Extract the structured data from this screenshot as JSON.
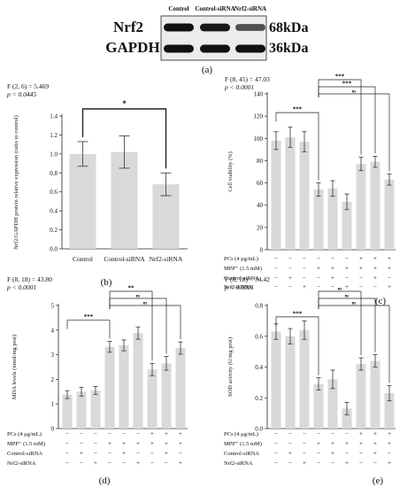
{
  "blot": {
    "lanes": [
      "Control",
      "Control-siRNA",
      "Nrf2-siRNA"
    ],
    "rows": [
      {
        "protein": "Nrf2",
        "mw": "68kDa",
        "intensity": [
          1.0,
          0.95,
          0.55
        ]
      },
      {
        "protein": "GAPDH",
        "mw": "36kDa",
        "intensity": [
          1.0,
          1.0,
          1.0
        ]
      }
    ],
    "panel_label": "(a)"
  },
  "chart_data": [
    {
      "panel": "(b)",
      "type": "bar",
      "stat": "F (2, 6) = 5.469",
      "pval": "p = 0.0445",
      "ylabel": "Nrf2/GAPDH protein relative expression (ratio to control)",
      "ylim": [
        0,
        1.4
      ],
      "yticks": [
        "0.0",
        "0.2",
        "0.4",
        "0.6",
        "0.8",
        "1.0",
        "1.2",
        "1.4"
      ],
      "categories": [
        "Control",
        "Control-siRNA",
        "Nrf2-siRNA"
      ],
      "values": [
        1.0,
        1.02,
        0.68
      ],
      "errors": [
        0.13,
        0.17,
        0.12
      ],
      "sig": [
        {
          "from": 0,
          "to": 2,
          "label": "*"
        }
      ]
    },
    {
      "panel": "(c)",
      "type": "bar",
      "stat": "F (8, 45) = 47.03",
      "pval": "p < 0.0001",
      "ylabel": "Cell viability (%)",
      "ylim": [
        0,
        140
      ],
      "yticks": [
        "0",
        "20",
        "40",
        "60",
        "80",
        "100",
        "120",
        "140"
      ],
      "values": [
        98,
        101,
        97,
        54,
        55,
        43,
        77,
        79,
        63
      ],
      "errors": [
        8,
        9,
        9,
        6,
        7,
        7,
        6,
        5,
        5
      ],
      "sig": [
        {
          "from": 0,
          "to": 3,
          "label": "***"
        },
        {
          "from": 3,
          "to": 6,
          "label": "***"
        },
        {
          "from": 3,
          "to": 7,
          "label": "***"
        },
        {
          "from": 3,
          "to": 8,
          "label": "ns"
        }
      ],
      "rows": [
        {
          "label": "PCs (4 μg/mL)",
          "marks": [
            "−",
            "−",
            "−",
            "−",
            "−",
            "−",
            "+",
            "+",
            "+"
          ]
        },
        {
          "label": "MPP⁺ (1.5 mM)",
          "marks": [
            "−",
            "−",
            "−",
            "+",
            "+",
            "+",
            "+",
            "+",
            "+"
          ]
        },
        {
          "label": "Control-siRNA",
          "marks": [
            "−",
            "+",
            "−",
            "−",
            "+",
            "−",
            "−",
            "+",
            "−"
          ]
        },
        {
          "label": "Nrf2-siRNA",
          "marks": [
            "−",
            "−",
            "+",
            "−",
            "−",
            "+",
            "−",
            "−",
            "+"
          ]
        }
      ]
    },
    {
      "panel": "(d)",
      "type": "bar",
      "stat": "F (8, 18) = 43.80",
      "pval": "p < 0.0001",
      "ylabel": "MDA levels (nmol/mg prot)",
      "ylim": [
        0,
        5
      ],
      "yticks": [
        "0",
        "1",
        "2",
        "3",
        "4",
        "5"
      ],
      "values": [
        1.38,
        1.5,
        1.55,
        3.32,
        3.38,
        3.88,
        2.4,
        2.65,
        3.27
      ],
      "errors": [
        0.16,
        0.18,
        0.16,
        0.22,
        0.22,
        0.25,
        0.25,
        0.28,
        0.25
      ],
      "sig": [
        {
          "from": 0,
          "to": 3,
          "label": "***"
        },
        {
          "from": 3,
          "to": 6,
          "label": "**"
        },
        {
          "from": 3,
          "to": 7,
          "label": "ns"
        },
        {
          "from": 3,
          "to": 8,
          "label": "ns"
        }
      ],
      "rows": [
        {
          "label": "PCs (4 μg/mL)",
          "marks": [
            "−",
            "−",
            "−",
            "−",
            "−",
            "−",
            "+",
            "+",
            "+"
          ]
        },
        {
          "label": "MPP⁺ (1.5 mM)",
          "marks": [
            "−",
            "−",
            "−",
            "+",
            "+",
            "+",
            "+",
            "+",
            "+"
          ]
        },
        {
          "label": "Control-siRNA",
          "marks": [
            "−",
            "+",
            "−",
            "−",
            "+",
            "−",
            "−",
            "+",
            "−"
          ]
        },
        {
          "label": "Nrf2-siRNA",
          "marks": [
            "−",
            "−",
            "+",
            "−",
            "−",
            "+",
            "−",
            "−",
            "+"
          ]
        }
      ]
    },
    {
      "panel": "(e)",
      "type": "bar",
      "stat": "F (8, 18) = 34.42",
      "pval": "p < 0.0001",
      "ylabel": "SOD activity (U/mg prot)",
      "ylim": [
        0,
        0.8
      ],
      "yticks": [
        "0.0",
        "0.2",
        "0.4",
        "0.6",
        "0.8"
      ],
      "values": [
        0.63,
        0.6,
        0.64,
        0.29,
        0.32,
        0.13,
        0.42,
        0.44,
        0.23
      ],
      "errors": [
        0.05,
        0.05,
        0.06,
        0.04,
        0.06,
        0.04,
        0.04,
        0.04,
        0.05
      ],
      "sig": [
        {
          "from": 0,
          "to": 3,
          "label": "***"
        },
        {
          "from": 3,
          "to": 6,
          "label": "ns"
        },
        {
          "from": 3,
          "to": 7,
          "label": "ns"
        },
        {
          "from": 3,
          "to": 8,
          "label": "ns"
        }
      ],
      "rows": [
        {
          "label": "PCs (4 μg/mL)",
          "marks": [
            "−",
            "−",
            "−",
            "−",
            "−",
            "−",
            "+",
            "+",
            "+"
          ]
        },
        {
          "label": "MPP⁺ (1.5 mM)",
          "marks": [
            "−",
            "−",
            "−",
            "+",
            "+",
            "+",
            "+",
            "+",
            "+"
          ]
        },
        {
          "label": "Control-siRNA",
          "marks": [
            "−",
            "+",
            "−",
            "−",
            "+",
            "−",
            "−",
            "+",
            "−"
          ]
        },
        {
          "label": "Nrf2-siRNA",
          "marks": [
            "−",
            "−",
            "+",
            "−",
            "−",
            "+",
            "−",
            "−",
            "+"
          ]
        }
      ]
    }
  ]
}
